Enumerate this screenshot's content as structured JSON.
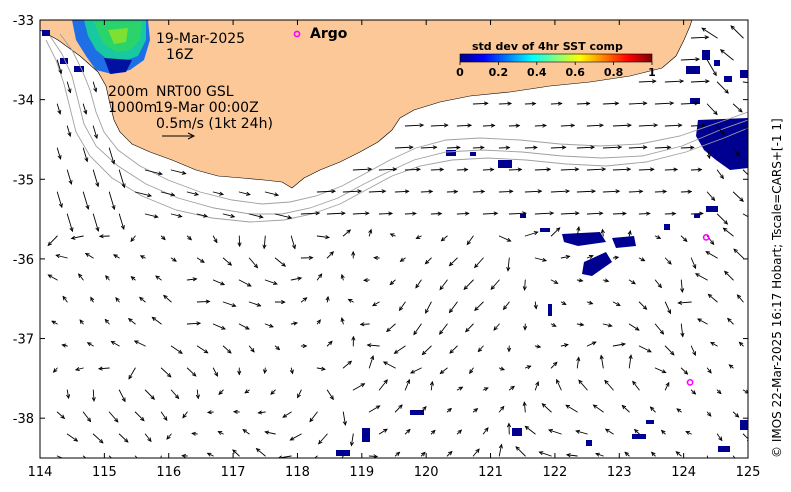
{
  "map": {
    "x_ticks": [
      "114",
      "115",
      "116",
      "117",
      "118",
      "119",
      "120",
      "121",
      "122",
      "123",
      "124",
      "125"
    ],
    "y_ticks": [
      "-33",
      "-34",
      "-35",
      "-36",
      "-37",
      "-38"
    ],
    "lon_range": [
      114,
      125
    ],
    "lat_range": [
      -38.5,
      -33
    ]
  },
  "annotations": {
    "date": "19-Mar-2025",
    "hour": "16Z",
    "depth_200": "200m",
    "depth_1000": "1000m",
    "product": "NRT00 GSL",
    "product_time": "19-Mar 00:00Z",
    "speed_scale": "0.5m/s (1kt 24h)"
  },
  "argo": {
    "label": "Argo",
    "color": "#ff00ff",
    "floats": [
      {
        "lon": 124.35,
        "lat": -35.73
      },
      {
        "lon": 124.1,
        "lat": -37.55
      }
    ]
  },
  "colorbar": {
    "title": "std dev of 4hr SST comp",
    "ticks": [
      "0",
      "0.2",
      "0.4",
      "0.6",
      "0.8",
      "1"
    ]
  },
  "credit": "© IMOS 22-Mar-2025 16:17 Hobart; Tscale=CARS+[-1 1]",
  "colors": {
    "land": "#fcc898",
    "sst_low": "#000090",
    "arrow": "#000000",
    "contour": "#a0a0a0"
  }
}
